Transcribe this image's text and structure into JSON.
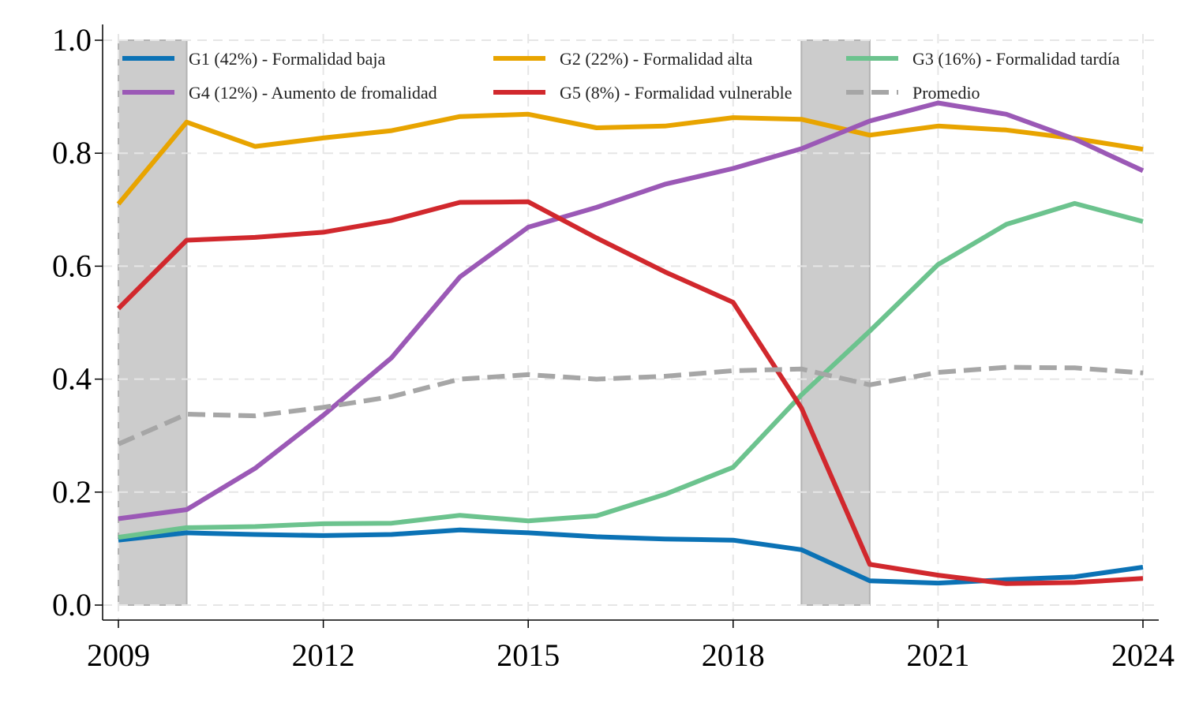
{
  "chart_data": {
    "type": "line",
    "title": "",
    "xlabel": "",
    "ylabel": "",
    "x": [
      2009,
      2010,
      2011,
      2012,
      2013,
      2014,
      2015,
      2016,
      2017,
      2018,
      2019,
      2020,
      2021,
      2022,
      2023,
      2024
    ],
    "xlim": [
      2009,
      2024
    ],
    "ylim": [
      0,
      1.0
    ],
    "x_ticks": [
      "2009",
      "2012",
      "2015",
      "2018",
      "2021",
      "2024"
    ],
    "y_ticks": [
      "0.0",
      "0.2",
      "0.4",
      "0.6",
      "0.8",
      "1.0"
    ],
    "grid": true,
    "legend_position": "top",
    "shaded_periods": [
      [
        2009,
        2010
      ],
      [
        2019,
        2020
      ]
    ],
    "shade_color": "#cccccc",
    "series": [
      {
        "name": "G1 (42%) - Formalidad baja",
        "color": "#0b72b5",
        "dashed": false,
        "values": [
          0.115,
          0.128,
          0.125,
          0.123,
          0.125,
          0.133,
          0.128,
          0.121,
          0.117,
          0.115,
          0.098,
          0.043,
          0.039,
          0.045,
          0.05,
          0.067
        ]
      },
      {
        "name": "G2 (22%) - Formalidad alta",
        "color": "#e8a400",
        "dashed": false,
        "values": [
          0.71,
          0.855,
          0.812,
          0.827,
          0.84,
          0.865,
          0.869,
          0.845,
          0.848,
          0.863,
          0.86,
          0.832,
          0.848,
          0.841,
          0.826,
          0.807
        ]
      },
      {
        "name": "G3 (16%) - Formalidad tardía",
        "color": "#6cc38e",
        "dashed": false,
        "values": [
          0.12,
          0.137,
          0.139,
          0.144,
          0.145,
          0.159,
          0.149,
          0.158,
          0.196,
          0.244,
          0.372,
          0.485,
          0.603,
          0.674,
          0.711,
          0.679
        ]
      },
      {
        "name": "G4 (12%) - Aumento de fromalidad",
        "color": "#9b59b6",
        "dashed": false,
        "values": [
          0.153,
          0.169,
          0.242,
          0.336,
          0.438,
          0.581,
          0.669,
          0.704,
          0.745,
          0.773,
          0.808,
          0.857,
          0.889,
          0.869,
          0.825,
          0.769
        ]
      },
      {
        "name": "G5 (8%) - Formalidad vulnerable",
        "color": "#d1282d",
        "dashed": false,
        "values": [
          0.525,
          0.646,
          0.651,
          0.66,
          0.681,
          0.713,
          0.714,
          0.65,
          0.59,
          0.536,
          0.349,
          0.072,
          0.053,
          0.038,
          0.04,
          0.047
        ]
      },
      {
        "name": "Promedio",
        "color": "#a6a6a6",
        "dashed": true,
        "values": [
          0.285,
          0.338,
          0.335,
          0.35,
          0.369,
          0.4,
          0.408,
          0.4,
          0.405,
          0.415,
          0.418,
          0.39,
          0.412,
          0.421,
          0.42,
          0.411
        ]
      }
    ]
  }
}
